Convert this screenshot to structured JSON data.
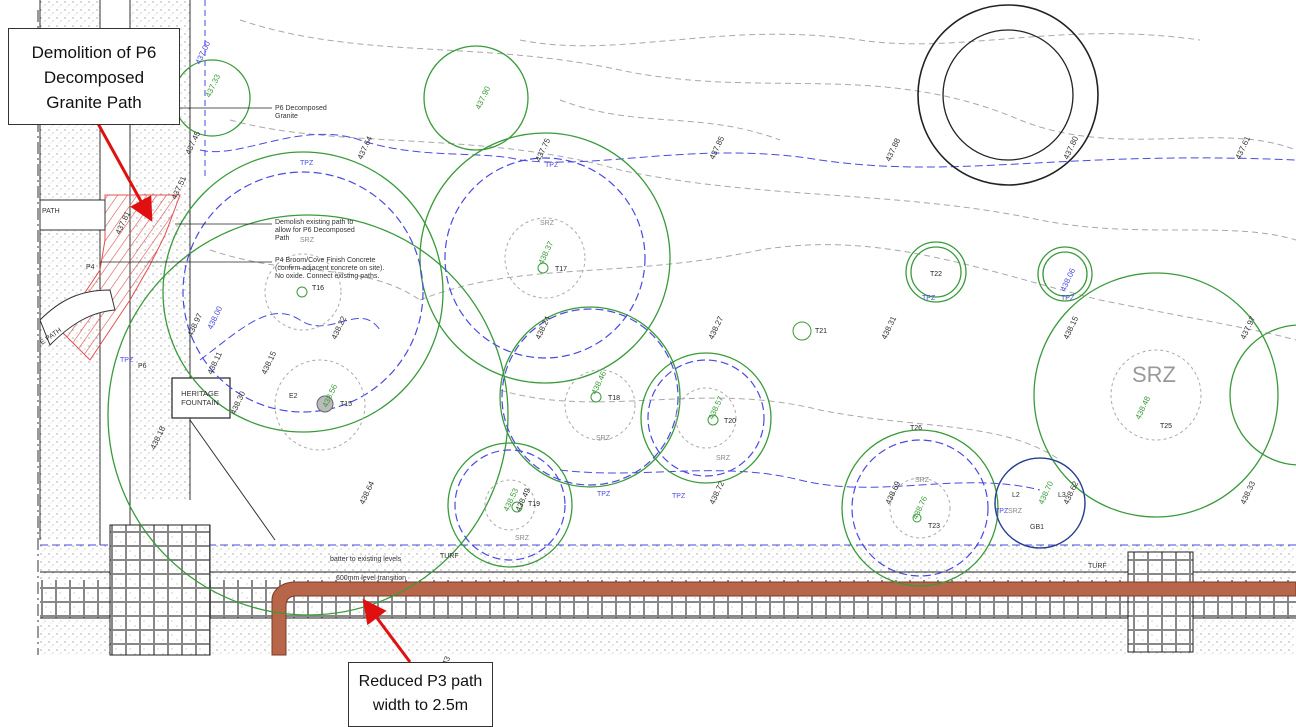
{
  "callouts": {
    "demolition": [
      "Demolition of P6",
      "Decomposed",
      "Granite Path"
    ],
    "p3_reduction": [
      "Reduced P3 path",
      "width to 2.5m"
    ]
  },
  "plan_labels": {
    "large_srz": "SRZ",
    "srz": "SRZ",
    "tpz": "TPZ",
    "path": "PATH",
    "path_lower": "E PATH",
    "p4": "P4",
    "p6": "P6",
    "heritage_fountain": [
      "HERITAGE",
      "FOUNTAIN"
    ],
    "e2": "E2",
    "gb1": "GB1",
    "l2": "L2",
    "l3": "L3",
    "turf": "TURF",
    "l1": "L1",
    "note_p6": [
      "P6 Decomposed",
      "Granite"
    ],
    "note_demolish": [
      "Demolish existing path to",
      "allow for P6 Decomposed",
      "Path"
    ],
    "note_p4": [
      "P4 Broom/Cove Finish Concrete",
      "(confirm adjacent concrete on site).",
      "No oxide. Connect existing paths."
    ],
    "note_batter": "batter to existing levels",
    "note_transition": "600mm level transition"
  },
  "trees": [
    "T16",
    "T17",
    "T15",
    "T18",
    "T20",
    "T19",
    "T21",
    "T22",
    "T23",
    "T25",
    "T26"
  ],
  "spot_levels": [
    "437.00",
    "437.33",
    "437.45",
    "437.64",
    "437.75",
    "437.85",
    "437.88",
    "437.80",
    "437.61",
    "437.51",
    "437.81",
    "437.90",
    "438.37",
    "438.00",
    "438.22",
    "438.15",
    "438.30",
    "438.18",
    "438.24",
    "438.27",
    "438.31",
    "438.15",
    "437.97",
    "438.46",
    "438.57",
    "438.64",
    "438.72",
    "438.69",
    "438.76",
    "438.70",
    "438.62",
    "438.33",
    "438.56",
    "438.06",
    "438.48",
    "438.49",
    "438.53",
    "438.11",
    "438.97",
    "438.43"
  ],
  "colors": {
    "tree_circle": "#3a9a3a",
    "tpz_dashed": "#3a3adb",
    "contour": "#9a9a9a",
    "arrow": "#e01010",
    "path_fill": "#b8664a",
    "demolition_hatch": "#e05050"
  }
}
